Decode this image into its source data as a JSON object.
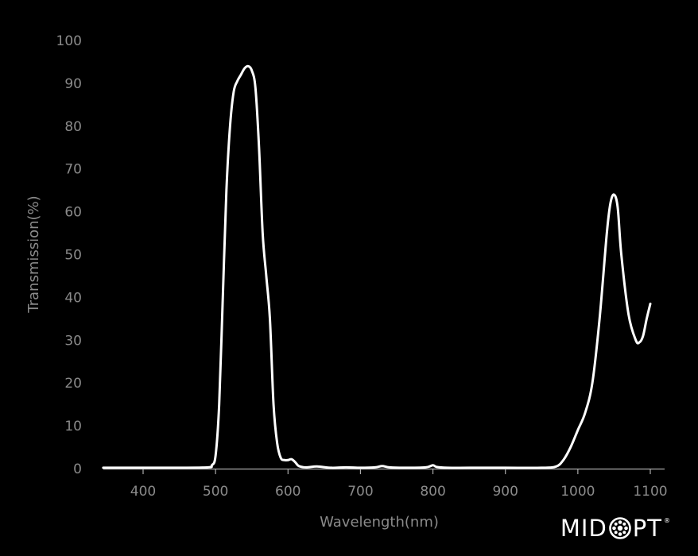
{
  "chart_data": {
    "type": "line",
    "xlabel": "Wavelength(nm)",
    "ylabel": "Transmission(%)",
    "xlim": [
      345,
      1110
    ],
    "ylim": [
      0,
      100
    ],
    "x_ticks": [
      400,
      500,
      600,
      700,
      800,
      900,
      1000,
      1100
    ],
    "y_ticks": [
      0,
      10,
      20,
      30,
      40,
      50,
      60,
      70,
      80,
      90,
      100
    ],
    "grid": false,
    "colors": {
      "background": "#000000",
      "line": "#ffffff",
      "text": "#8a8a8a",
      "axis": "#aaaaaa"
    },
    "series": [
      {
        "points": [
          [
            345,
            0.2
          ],
          [
            400,
            0.2
          ],
          [
            450,
            0.2
          ],
          [
            490,
            0.3
          ],
          [
            495,
            0.8
          ],
          [
            500,
            3
          ],
          [
            505,
            15
          ],
          [
            510,
            40
          ],
          [
            515,
            65
          ],
          [
            520,
            80
          ],
          [
            525,
            88
          ],
          [
            530,
            90.5
          ],
          [
            535,
            92
          ],
          [
            540,
            93.5
          ],
          [
            545,
            94
          ],
          [
            550,
            93
          ],
          [
            555,
            89
          ],
          [
            560,
            75
          ],
          [
            565,
            55
          ],
          [
            570,
            45
          ],
          [
            575,
            35
          ],
          [
            580,
            15
          ],
          [
            585,
            6
          ],
          [
            590,
            2.5
          ],
          [
            595,
            2
          ],
          [
            600,
            2
          ],
          [
            605,
            2.2
          ],
          [
            610,
            1.5
          ],
          [
            615,
            0.6
          ],
          [
            625,
            0.3
          ],
          [
            640,
            0.5
          ],
          [
            660,
            0.2
          ],
          [
            680,
            0.3
          ],
          [
            700,
            0.2
          ],
          [
            720,
            0.3
          ],
          [
            730,
            0.6
          ],
          [
            740,
            0.3
          ],
          [
            760,
            0.2
          ],
          [
            790,
            0.3
          ],
          [
            800,
            0.8
          ],
          [
            805,
            0.4
          ],
          [
            820,
            0.2
          ],
          [
            850,
            0.2
          ],
          [
            900,
            0.2
          ],
          [
            950,
            0.2
          ],
          [
            970,
            0.5
          ],
          [
            980,
            2
          ],
          [
            990,
            5
          ],
          [
            1000,
            9
          ],
          [
            1010,
            13
          ],
          [
            1020,
            20
          ],
          [
            1030,
            35
          ],
          [
            1040,
            55
          ],
          [
            1045,
            62
          ],
          [
            1050,
            64
          ],
          [
            1055,
            61
          ],
          [
            1060,
            50
          ],
          [
            1070,
            36
          ],
          [
            1080,
            30
          ],
          [
            1085,
            29.5
          ],
          [
            1090,
            31
          ],
          [
            1095,
            35
          ],
          [
            1100,
            38.5
          ]
        ]
      }
    ]
  },
  "logo": {
    "text_left": "MID",
    "text_right": "PT",
    "registered": "®"
  }
}
